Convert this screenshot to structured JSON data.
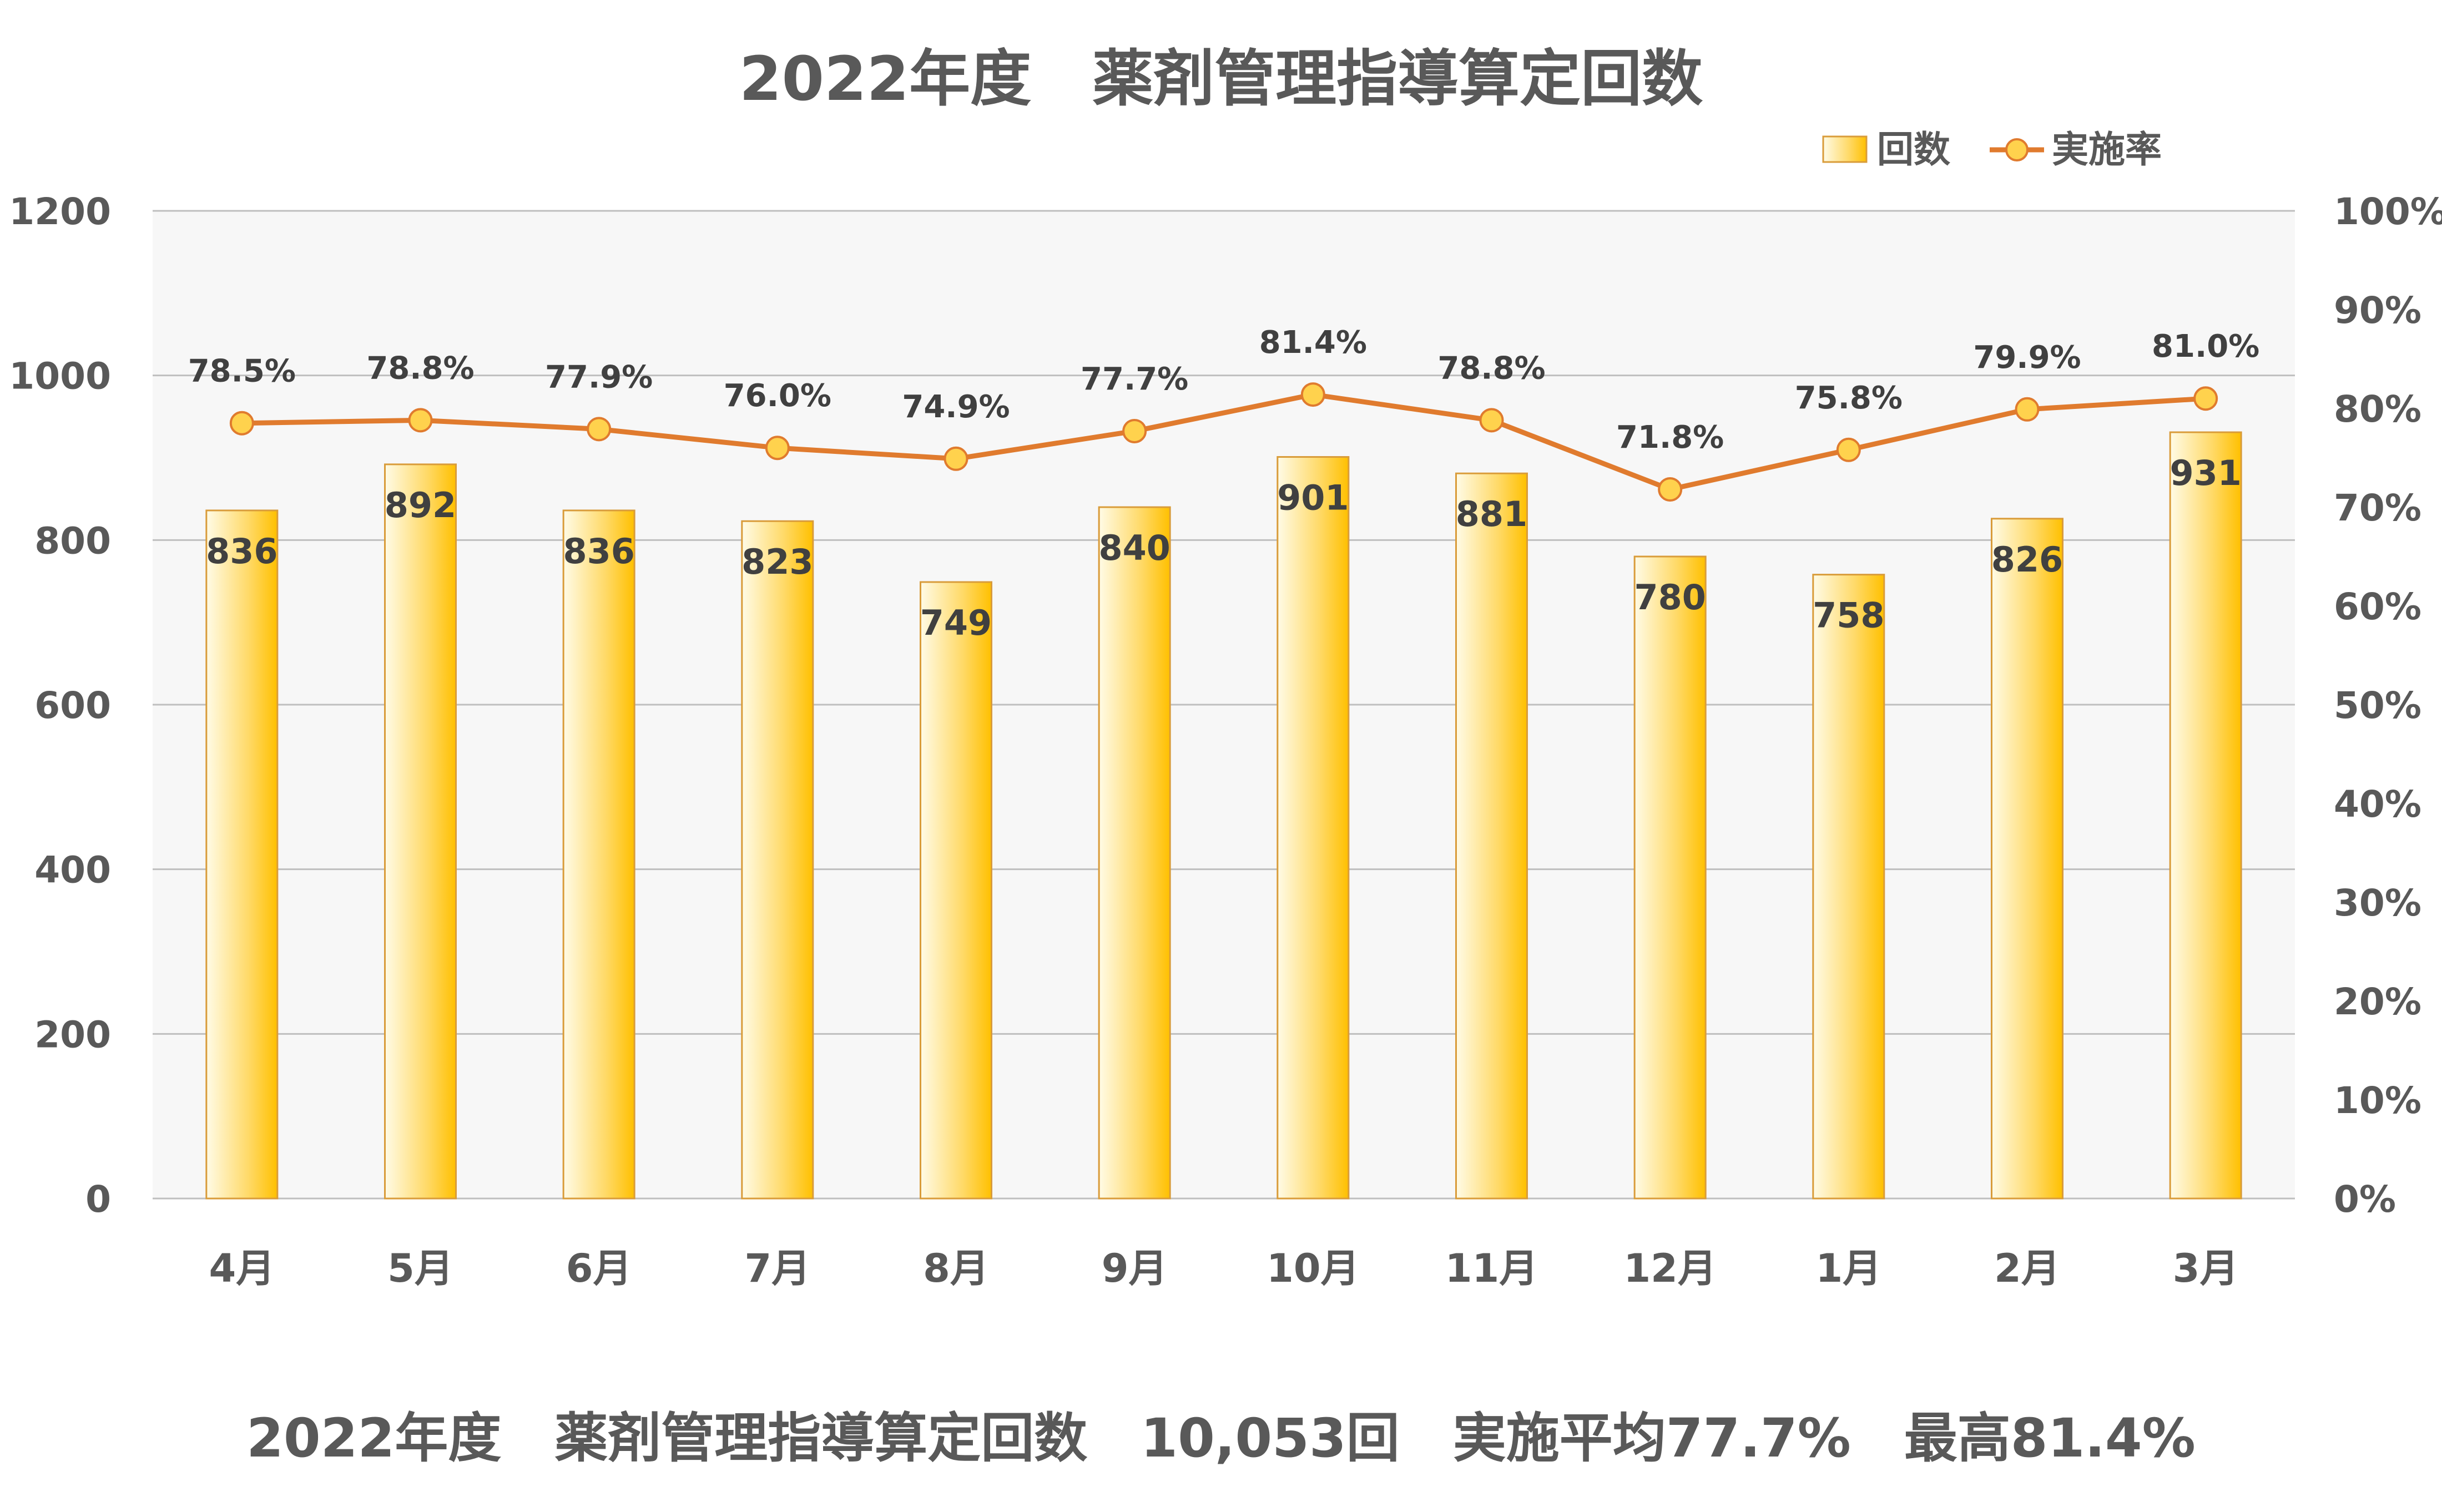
{
  "title": "2022年度　薬剤管理指導算定回数",
  "footer": "2022年度　薬剤管理指導算定回数　10,053回　実施平均77.7%　最高81.4%",
  "colors": {
    "plot_bg": "#f7f7f7",
    "grid": "#bfbfbf",
    "bar_light": "#fffbe6",
    "bar_mid": "#ffd966",
    "bar_dark": "#ffc000",
    "bar_border": "#d99c3a",
    "line": "#e07b2e",
    "marker": "#ffd24d"
  },
  "chart_data": {
    "type": "bar",
    "title": "2022年度　薬剤管理指導算定回数",
    "categories": [
      "4月",
      "5月",
      "6月",
      "7月",
      "8月",
      "9月",
      "10月",
      "11月",
      "12月",
      "1月",
      "2月",
      "3月"
    ],
    "series": [
      {
        "name": "回数",
        "type": "bar",
        "axis": "left",
        "values": [
          836,
          892,
          836,
          823,
          749,
          840,
          901,
          881,
          780,
          758,
          826,
          931
        ]
      },
      {
        "name": "実施率",
        "type": "line",
        "axis": "right",
        "values": [
          78.5,
          78.8,
          77.9,
          76.0,
          74.9,
          77.7,
          81.4,
          78.8,
          71.8,
          75.8,
          79.9,
          81.0
        ],
        "labels": [
          "78.5%",
          "78.8%",
          "77.9%",
          "76.0%",
          "74.9%",
          "77.7%",
          "81.4%",
          "78.8%",
          "71.8%",
          "75.8%",
          "79.9%",
          "81.0%"
        ]
      }
    ],
    "y_left": {
      "lim": [
        0,
        1200
      ],
      "ticks": [
        "0",
        "200",
        "400",
        "600",
        "800",
        "1000",
        "1200"
      ]
    },
    "y_right": {
      "lim": [
        0,
        100
      ],
      "ticks": [
        "0%",
        "10%",
        "20%",
        "30%",
        "40%",
        "50%",
        "60%",
        "70%",
        "80%",
        "90%",
        "100%"
      ]
    },
    "grid": true,
    "legend": "top-right"
  }
}
